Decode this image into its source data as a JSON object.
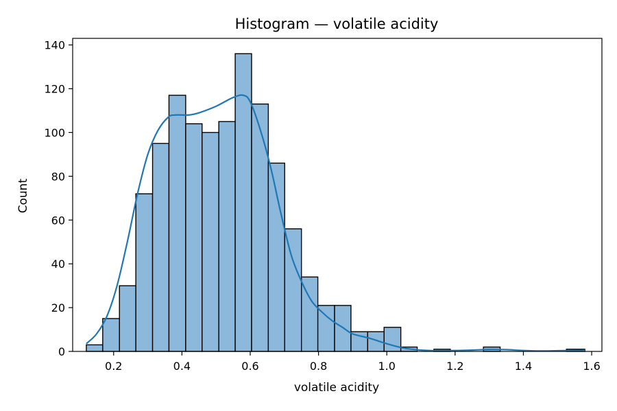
{
  "chart_data": {
    "type": "bar",
    "title": "Histogram — volatile acidity",
    "xlabel": "volatile acidity",
    "ylabel": "Count",
    "xlim": [
      0.08,
      1.63
    ],
    "ylim": [
      0,
      143
    ],
    "grid": false,
    "bar_color": "#8cb8db",
    "bar_edge_color": "#000000",
    "kde_color": "#1f77b4",
    "x_ticks": [
      "0.2",
      "0.4",
      "0.6",
      "0.8",
      "1.0",
      "1.2",
      "1.4",
      "1.6"
    ],
    "y_ticks": [
      "0",
      "20",
      "40",
      "60",
      "80",
      "100",
      "120",
      "140"
    ],
    "bins": [
      {
        "x0": 0.12,
        "x1": 0.168,
        "count": 3
      },
      {
        "x0": 0.168,
        "x1": 0.217,
        "count": 15
      },
      {
        "x0": 0.217,
        "x1": 0.265,
        "count": 30
      },
      {
        "x0": 0.265,
        "x1": 0.314,
        "count": 72
      },
      {
        "x0": 0.314,
        "x1": 0.362,
        "count": 95
      },
      {
        "x0": 0.362,
        "x1": 0.411,
        "count": 117
      },
      {
        "x0": 0.411,
        "x1": 0.459,
        "count": 104
      },
      {
        "x0": 0.459,
        "x1": 0.508,
        "count": 100
      },
      {
        "x0": 0.508,
        "x1": 0.556,
        "count": 105
      },
      {
        "x0": 0.556,
        "x1": 0.604,
        "count": 136
      },
      {
        "x0": 0.604,
        "x1": 0.653,
        "count": 113
      },
      {
        "x0": 0.653,
        "x1": 0.701,
        "count": 86
      },
      {
        "x0": 0.701,
        "x1": 0.75,
        "count": 56
      },
      {
        "x0": 0.75,
        "x1": 0.798,
        "count": 34
      },
      {
        "x0": 0.798,
        "x1": 0.847,
        "count": 21
      },
      {
        "x0": 0.847,
        "x1": 0.895,
        "count": 21
      },
      {
        "x0": 0.895,
        "x1": 0.944,
        "count": 9
      },
      {
        "x0": 0.944,
        "x1": 0.992,
        "count": 9
      },
      {
        "x0": 0.992,
        "x1": 1.041,
        "count": 11
      },
      {
        "x0": 1.041,
        "x1": 1.089,
        "count": 2
      },
      {
        "x0": 1.089,
        "x1": 1.138,
        "count": 0
      },
      {
        "x0": 1.138,
        "x1": 1.186,
        "count": 1
      },
      {
        "x0": 1.186,
        "x1": 1.235,
        "count": 0
      },
      {
        "x0": 1.235,
        "x1": 1.283,
        "count": 0
      },
      {
        "x0": 1.283,
        "x1": 1.332,
        "count": 2
      },
      {
        "x0": 1.332,
        "x1": 1.38,
        "count": 0
      },
      {
        "x0": 1.38,
        "x1": 1.429,
        "count": 0
      },
      {
        "x0": 1.429,
        "x1": 1.477,
        "count": 0
      },
      {
        "x0": 1.477,
        "x1": 1.526,
        "count": 0
      },
      {
        "x0": 1.526,
        "x1": 1.58,
        "count": 1
      }
    ],
    "kde": {
      "x": [
        0.12,
        0.15,
        0.18,
        0.21,
        0.24,
        0.27,
        0.3,
        0.33,
        0.36,
        0.38,
        0.42,
        0.45,
        0.5,
        0.55,
        0.58,
        0.6,
        0.63,
        0.66,
        0.69,
        0.72,
        0.75,
        0.78,
        0.81,
        0.84,
        0.87,
        0.9,
        0.95,
        1.0,
        1.05,
        1.1,
        1.15,
        1.2,
        1.25,
        1.3,
        1.35,
        1.4,
        1.45,
        1.5,
        1.55,
        1.58
      ],
      "y": [
        3.5,
        8,
        16,
        30,
        50,
        72,
        90,
        101,
        107,
        108,
        108,
        109,
        112,
        116,
        117,
        114,
        101,
        84,
        63,
        44,
        32,
        23,
        18,
        14,
        11,
        8,
        6,
        3.5,
        1.5,
        0.6,
        0.3,
        0.4,
        0.6,
        0.9,
        0.8,
        0.4,
        0.2,
        0.3,
        0.4,
        0.5
      ]
    }
  }
}
